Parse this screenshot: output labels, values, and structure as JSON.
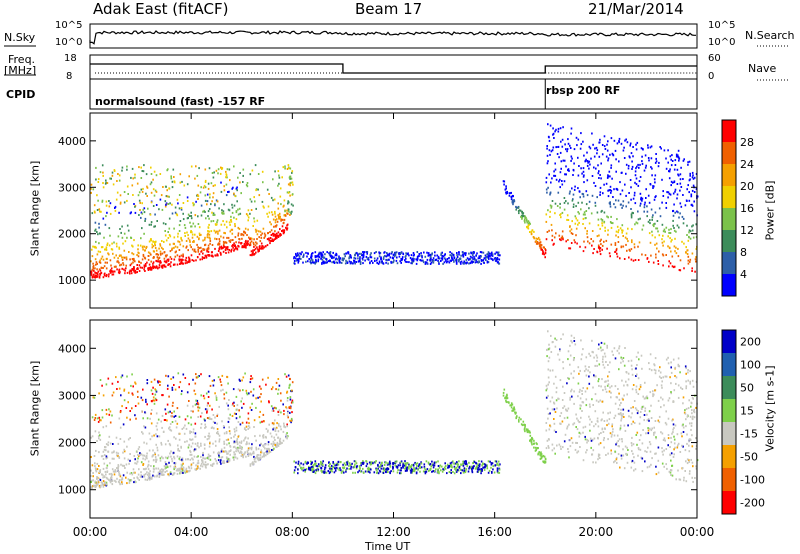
{
  "header": {
    "radar": "Adak East (fitACF)",
    "beam": "Beam 17",
    "date": "21/Mar/2014"
  },
  "strip": {
    "nsky_label": "N.Sky",
    "nsky_ticks": [
      "10^5",
      "10^0"
    ],
    "nsearch_label": "N.Search",
    "nsearch_ticks": [
      "10^5",
      "10^0"
    ],
    "freq_label": "Freq.",
    "freq_unit": "[MHz]",
    "freq_ticks": [
      "18",
      "8"
    ],
    "nave_label": "Nave",
    "nave_ticks": [
      "60",
      "0"
    ],
    "cpid_label": "CPID",
    "cpid_segments": [
      "normalsound (fast) -157 RF",
      "rbsp 200 RF"
    ]
  },
  "chart_data": [
    {
      "type": "heatmap",
      "name": "power",
      "ylabel": "Slant Range [km]",
      "yticks": [
        1000,
        2000,
        3000,
        4000
      ],
      "ylim": [
        400,
        4600
      ],
      "colorbar_label": "Power [dB]",
      "colorbar_ticks": [
        4,
        8,
        12,
        16,
        20,
        24,
        28
      ],
      "colorbar_range": [
        0,
        32
      ],
      "colorscale": [
        "#0000ff",
        "#2d5fa8",
        "#3c8c5a",
        "#7bc24a",
        "#f0d000",
        "#f5a000",
        "#f06000",
        "#ff0000"
      ]
    },
    {
      "type": "heatmap",
      "name": "velocity",
      "ylabel": "Slant Range [km]",
      "yticks": [
        1000,
        2000,
        3000,
        4000
      ],
      "ylim": [
        400,
        4600
      ],
      "colorbar_label": "Velocity [m s-1]",
      "colorbar_ticks": [
        200,
        100,
        50,
        15,
        -15,
        -50,
        -100,
        -200
      ],
      "colorscale": [
        "#0000c8",
        "#2060b0",
        "#3c8c5a",
        "#7ed04a",
        "#c8c8c0",
        "#f5a000",
        "#f06000",
        "#ff0000"
      ]
    }
  ],
  "xaxis": {
    "ticks": [
      "00:00",
      "04:00",
      "08:00",
      "12:00",
      "16:00",
      "20:00",
      "00:00"
    ],
    "label": "Time UT"
  }
}
